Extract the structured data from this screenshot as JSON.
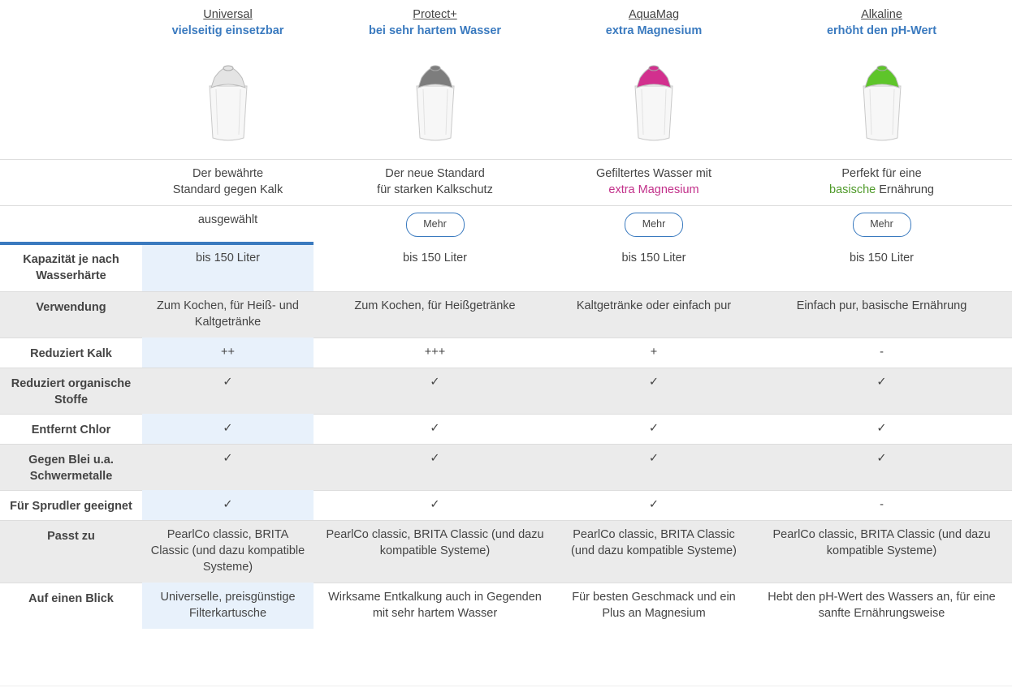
{
  "products": [
    {
      "name": "Universal",
      "subtitle": "vielseitig einsetzbar",
      "cap_color": "#e4e4e4",
      "description": [
        [
          {
            "text": "Der bewährte"
          }
        ],
        [
          {
            "text": "Standard gegen Kalk"
          }
        ]
      ],
      "action": "ausgewählt",
      "selected": true
    },
    {
      "name": "Protect+",
      "subtitle": "bei sehr hartem Wasser",
      "cap_color": "#7d7d7d",
      "description": [
        [
          {
            "text": "Der neue Standard"
          }
        ],
        [
          {
            "text": "für starken Kalkschutz"
          }
        ]
      ],
      "action": "Mehr",
      "selected": false
    },
    {
      "name": "AquaMag",
      "subtitle": "extra Magnesium",
      "cap_color": "#d2308e",
      "description": [
        [
          {
            "text": "Gefiltertes Wasser mit"
          }
        ],
        [
          {
            "text": "extra Magnesium",
            "color": "#c2308a"
          }
        ]
      ],
      "action": "Mehr",
      "selected": false
    },
    {
      "name": "Alkaline",
      "subtitle": "erhöht den pH-Wert",
      "cap_color": "#5ec52a",
      "description": [
        [
          {
            "text": "Perfekt für eine"
          }
        ],
        [
          {
            "text": "basische",
            "color": "#4f9a2a"
          },
          {
            "text": " Ernährung"
          }
        ]
      ],
      "action": "Mehr",
      "selected": false
    }
  ],
  "rows": [
    {
      "label": "Kapazität je nach Wasserhärte",
      "cells": [
        "bis 150 Liter",
        "bis 150 Liter",
        "bis 150 Liter",
        "bis 150 Liter"
      ]
    },
    {
      "label": "Verwendung",
      "cells": [
        "Zum Kochen, für Heiß- und Kaltgetränke",
        "Zum Kochen, für Heißgetränke",
        "Kaltgetränke oder einfach pur",
        "Einfach pur, basische Ernährung"
      ]
    },
    {
      "label": "Reduziert Kalk",
      "cells": [
        "++",
        "+++",
        "+",
        "-"
      ]
    },
    {
      "label": "Reduziert organische Stoffe",
      "cells": [
        "✓",
        "✓",
        "✓",
        "✓"
      ]
    },
    {
      "label": "Entfernt Chlor",
      "cells": [
        "✓",
        "✓",
        "✓",
        "✓"
      ]
    },
    {
      "label": "Gegen Blei u.a. Schwermetalle",
      "cells": [
        "✓",
        "✓",
        "✓",
        "✓"
      ]
    },
    {
      "label": "Für Sprudler geeignet",
      "cells": [
        "✓",
        "✓",
        "✓",
        "-"
      ]
    },
    {
      "label": "Passt zu",
      "cells": [
        "PearlCo classic, BRITA Classic (und dazu kompatible Systeme)",
        "PearlCo classic, BRITA Classic (und dazu kompatible Systeme)",
        "PearlCo classic, BRITA Classic (und dazu kompatible Systeme)",
        "PearlCo classic, BRITA Classic (und dazu kompatible Systeme)"
      ]
    },
    {
      "label": "Auf einen Blick",
      "cells": [
        "Universelle, preisgünstige Filterkartusche",
        "Wirksame Entkalkung auch in Gegenden mit sehr hartem Wasser",
        "Für besten Geschmack und ein Plus an Magnesium",
        "Hebt den pH-Wert des Wassers an, für eine sanfte Ernährungsweise"
      ]
    }
  ]
}
